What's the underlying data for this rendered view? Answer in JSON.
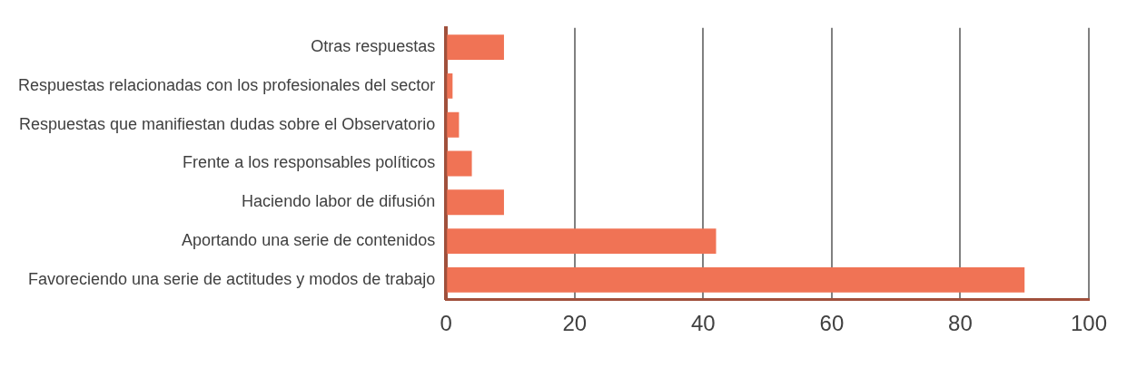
{
  "chart_data": {
    "type": "bar",
    "orientation": "horizontal",
    "categories": [
      "Otras respuestas",
      "Respuestas relacionadas con los profesionales del sector",
      "Respuestas que manifiestan dudas sobre el Observatorio",
      "Frente a los responsables políticos",
      "Haciendo labor de difusión",
      "Aportando una serie de contenidos",
      "Favoreciendo una serie de actitudes y modos de trabajo"
    ],
    "values": [
      9,
      1,
      2,
      4,
      9,
      42,
      90
    ],
    "color": "#f07355",
    "xlim": [
      0,
      100
    ],
    "xticks": [
      0,
      20,
      40,
      60,
      80,
      100
    ],
    "grid": "x",
    "legend": false
  }
}
